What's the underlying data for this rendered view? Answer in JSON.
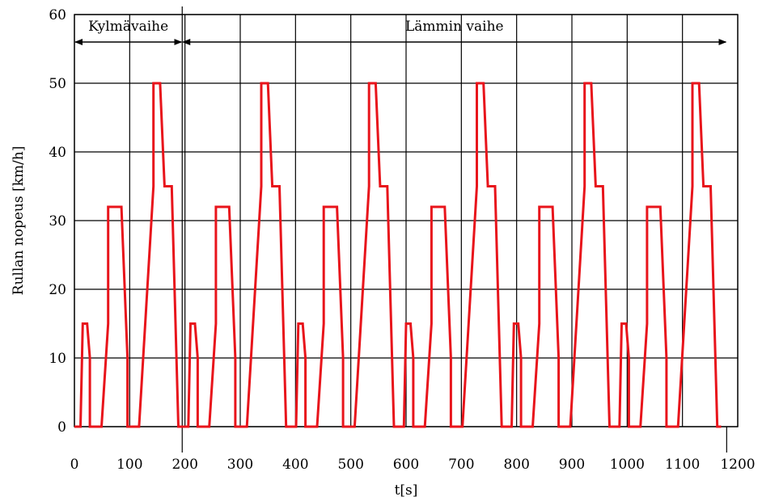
{
  "chart_data": {
    "type": "line",
    "title": "",
    "xlabel": "t[s]",
    "ylabel": "Rullan nopeus [km/h]",
    "xlim": [
      0,
      1200
    ],
    "ylim": [
      0,
      60
    ],
    "x_ticks": [
      0,
      100,
      200,
      300,
      400,
      500,
      600,
      700,
      800,
      900,
      1000,
      1100,
      1200
    ],
    "y_ticks": [
      0,
      10,
      20,
      30,
      40,
      50,
      60
    ],
    "grid": true,
    "line_color": "#e8141b",
    "cycle_period": 195,
    "phases": [
      {
        "label": "Kylmävaihe",
        "x_range": [
          0,
          195
        ]
      },
      {
        "label": "Lämmin vaihe",
        "x_range": [
          195,
          1180
        ]
      }
    ],
    "series": [
      {
        "values": [
          [
            0,
            0
          ],
          [
            11,
            0
          ],
          [
            15,
            15
          ],
          [
            23,
            15
          ],
          [
            28,
            10
          ],
          [
            28,
            0
          ],
          [
            49,
            0
          ],
          [
            61,
            15
          ],
          [
            61,
            32
          ],
          [
            85,
            32
          ],
          [
            96,
            10
          ],
          [
            96,
            0
          ],
          [
            117,
            0
          ],
          [
            143,
            35
          ],
          [
            143,
            50
          ],
          [
            155,
            50
          ],
          [
            163,
            35
          ],
          [
            176,
            35
          ],
          [
            188,
            0
          ],
          [
            195,
            0
          ],
          [
            206,
            0
          ],
          [
            210,
            15
          ],
          [
            218,
            15
          ],
          [
            223,
            10
          ],
          [
            223,
            0
          ],
          [
            244,
            0
          ],
          [
            256,
            15
          ],
          [
            256,
            32
          ],
          [
            280,
            32
          ],
          [
            291,
            10
          ],
          [
            291,
            0
          ],
          [
            312,
            0
          ],
          [
            338,
            35
          ],
          [
            338,
            50
          ],
          [
            350,
            50
          ],
          [
            358,
            35
          ],
          [
            371,
            35
          ],
          [
            383,
            0
          ],
          [
            390,
            0
          ],
          [
            401,
            0
          ],
          [
            405,
            15
          ],
          [
            413,
            15
          ],
          [
            418,
            10
          ],
          [
            418,
            0
          ],
          [
            439,
            0
          ],
          [
            451,
            15
          ],
          [
            451,
            32
          ],
          [
            475,
            32
          ],
          [
            486,
            10
          ],
          [
            486,
            0
          ],
          [
            507,
            0
          ],
          [
            533,
            35
          ],
          [
            533,
            50
          ],
          [
            545,
            50
          ],
          [
            553,
            35
          ],
          [
            566,
            35
          ],
          [
            578,
            0
          ],
          [
            585,
            0
          ],
          [
            596,
            0
          ],
          [
            600,
            15
          ],
          [
            608,
            15
          ],
          [
            613,
            10
          ],
          [
            613,
            0
          ],
          [
            634,
            0
          ],
          [
            646,
            15
          ],
          [
            646,
            32
          ],
          [
            670,
            32
          ],
          [
            681,
            10
          ],
          [
            681,
            0
          ],
          [
            702,
            0
          ],
          [
            728,
            35
          ],
          [
            728,
            50
          ],
          [
            740,
            50
          ],
          [
            748,
            35
          ],
          [
            761,
            35
          ],
          [
            773,
            0
          ],
          [
            780,
            0
          ],
          [
            791,
            0
          ],
          [
            795,
            15
          ],
          [
            803,
            15
          ],
          [
            808,
            10
          ],
          [
            808,
            0
          ],
          [
            829,
            0
          ],
          [
            841,
            15
          ],
          [
            841,
            32
          ],
          [
            865,
            32
          ],
          [
            876,
            10
          ],
          [
            876,
            0
          ],
          [
            897,
            0
          ],
          [
            923,
            35
          ],
          [
            923,
            50
          ],
          [
            935,
            50
          ],
          [
            943,
            35
          ],
          [
            956,
            35
          ],
          [
            968,
            0
          ],
          [
            975,
            0
          ],
          [
            986,
            0
          ],
          [
            990,
            15
          ],
          [
            998,
            15
          ],
          [
            1003,
            10
          ],
          [
            1003,
            0
          ],
          [
            1024,
            0
          ],
          [
            1036,
            15
          ],
          [
            1036,
            32
          ],
          [
            1060,
            32
          ],
          [
            1071,
            10
          ],
          [
            1071,
            0
          ],
          [
            1092,
            0
          ],
          [
            1118,
            35
          ],
          [
            1118,
            50
          ],
          [
            1130,
            50
          ],
          [
            1138,
            35
          ],
          [
            1151,
            35
          ],
          [
            1163,
            0
          ],
          [
            1170,
            0
          ]
        ]
      }
    ]
  }
}
